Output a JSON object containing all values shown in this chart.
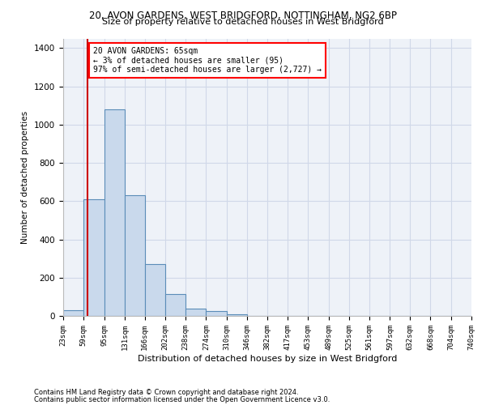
{
  "title1": "20, AVON GARDENS, WEST BRIDGFORD, NOTTINGHAM, NG2 6BP",
  "title2": "Size of property relative to detached houses in West Bridgford",
  "xlabel": "Distribution of detached houses by size in West Bridgford",
  "ylabel": "Number of detached properties",
  "footnote1": "Contains HM Land Registry data © Crown copyright and database right 2024.",
  "footnote2": "Contains public sector information licensed under the Open Government Licence v3.0.",
  "bar_color": "#c9d9ec",
  "bar_edge_color": "#5b8db8",
  "grid_color": "#d0d8e8",
  "background_color": "#eef2f8",
  "annotation_line1": "20 AVON GARDENS: 65sqm",
  "annotation_line2": "← 3% of detached houses are smaller (95)",
  "annotation_line3": "97% of semi-detached houses are larger (2,727) →",
  "vline_x": 65,
  "vline_color": "#cc0000",
  "bins": [
    23,
    59,
    95,
    131,
    166,
    202,
    238,
    274,
    310,
    346,
    382,
    417,
    453,
    489,
    525,
    561,
    597,
    632,
    668,
    704,
    740
  ],
  "bar_heights": [
    30,
    610,
    1080,
    630,
    270,
    115,
    40,
    25,
    10,
    0,
    0,
    0,
    0,
    0,
    0,
    0,
    0,
    0,
    0,
    0
  ],
  "ylim": [
    0,
    1450
  ],
  "yticks": [
    0,
    200,
    400,
    600,
    800,
    1000,
    1200,
    1400
  ]
}
